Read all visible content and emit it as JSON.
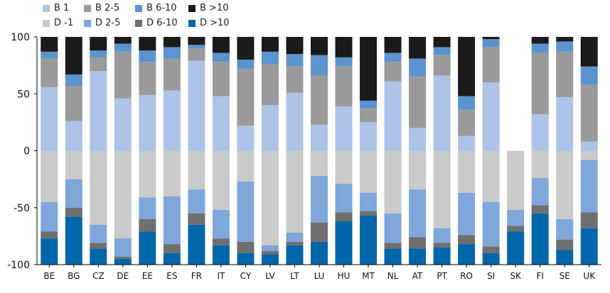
{
  "chart_data": {
    "type": "bar",
    "stacked": true,
    "categories": [
      "BE",
      "BG",
      "CZ",
      "DE",
      "EE",
      "ES",
      "FR",
      "IT",
      "CY",
      "LV",
      "LT",
      "LU",
      "HU",
      "MT",
      "NL",
      "AT",
      "PT",
      "RO",
      "SI",
      "SK",
      "FI",
      "SE",
      "UK"
    ],
    "ylim": [
      -100,
      100
    ],
    "yticks": [
      "100",
      "50",
      "0",
      "-50",
      "-100"
    ],
    "yticks_values": [
      100,
      50,
      0,
      -50,
      -100
    ],
    "grid": false,
    "legend_position": "top-left",
    "positive_series": [
      {
        "name": "B 1",
        "color": "#adc3e7",
        "values": [
          56,
          26,
          70,
          46,
          49,
          53,
          79,
          48,
          22,
          40,
          51,
          23,
          39,
          25,
          61,
          20,
          66,
          13,
          60,
          0,
          32,
          47,
          8
        ]
      },
      {
        "name": "B 2-5",
        "color": "#9a9a9a",
        "values": [
          25,
          31,
          12,
          41,
          29,
          28,
          11,
          30,
          50,
          36,
          23,
          43,
          35,
          12,
          17,
          45,
          18,
          23,
          31,
          0,
          54,
          40,
          50
        ]
      },
      {
        "name": "B 6-10",
        "color": "#5c93cf",
        "values": [
          6,
          10,
          6,
          7,
          10,
          10,
          3,
          8,
          8,
          11,
          11,
          18,
          8,
          7,
          8,
          16,
          7,
          12,
          7,
          0,
          8,
          9,
          16
        ]
      },
      {
        "name": "B >10",
        "color": "#1a1a1a",
        "values": [
          13,
          33,
          12,
          6,
          12,
          9,
          7,
          14,
          20,
          13,
          15,
          16,
          18,
          56,
          14,
          19,
          9,
          52,
          2,
          0,
          6,
          4,
          26
        ]
      }
    ],
    "negative_series": [
      {
        "name": "D -1",
        "color": "#cacaca",
        "values": [
          45,
          25,
          65,
          77,
          41,
          40,
          34,
          52,
          27,
          83,
          72,
          22,
          29,
          37,
          55,
          34,
          68,
          37,
          45,
          52,
          24,
          60,
          8
        ]
      },
      {
        "name": "D 2-5",
        "color": "#7fa7da",
        "values": [
          26,
          25,
          16,
          16,
          19,
          42,
          21,
          25,
          53,
          5,
          8,
          41,
          25,
          16,
          26,
          42,
          13,
          37,
          39,
          14,
          24,
          18,
          46
        ]
      },
      {
        "name": "D 6-10",
        "color": "#6f6f6f",
        "values": [
          6,
          8,
          5,
          2,
          11,
          8,
          10,
          6,
          10,
          3,
          3,
          17,
          8,
          4,
          5,
          10,
          4,
          8,
          6,
          5,
          7,
          9,
          14
        ]
      },
      {
        "name": "D >10",
        "color": "#0066aa",
        "values": [
          23,
          42,
          14,
          5,
          29,
          10,
          35,
          17,
          10,
          9,
          17,
          20,
          38,
          43,
          14,
          14,
          15,
          18,
          10,
          29,
          45,
          13,
          32
        ]
      }
    ]
  },
  "legend": {
    "items": [
      {
        "label": "B 1",
        "color": "#adc3e7"
      },
      {
        "label": "B 2-5",
        "color": "#9a9a9a"
      },
      {
        "label": "B 6-10",
        "color": "#5c93cf"
      },
      {
        "label": "B >10",
        "color": "#1a1a1a"
      },
      {
        "label": "D -1",
        "color": "#cacaca"
      },
      {
        "label": "D 2-5",
        "color": "#7fa7da"
      },
      {
        "label": "D 6-10",
        "color": "#6f6f6f"
      },
      {
        "label": "D >10",
        "color": "#0066aa"
      }
    ]
  }
}
